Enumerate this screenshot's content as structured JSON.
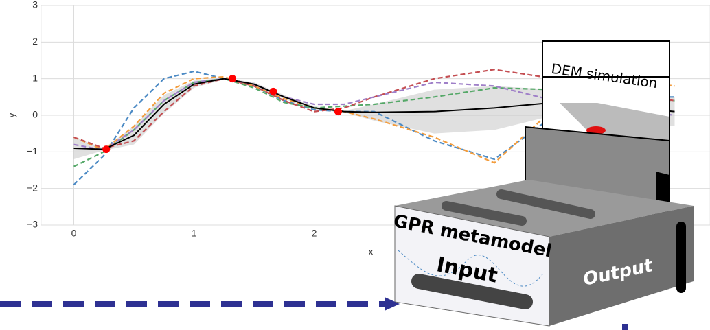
{
  "chart_data": {
    "type": "line",
    "x_label": "x",
    "y_label": "y",
    "x": [
      0,
      0.25,
      0.5,
      0.75,
      1.0,
      1.25,
      1.5,
      1.75,
      2.0,
      2.25,
      2.5,
      3.0,
      3.5,
      4.0,
      4.5,
      5.0
    ],
    "xlim": [
      -0.3,
      5.3
    ],
    "ylim": [
      -3,
      3
    ],
    "xticks": [
      0,
      1,
      2
    ],
    "yticks": [
      {
        "value": -3,
        "label": "−3"
      },
      {
        "value": -2,
        "label": "−2"
      },
      {
        "value": -1,
        "label": "−1"
      },
      0,
      1,
      2,
      3
    ],
    "grid": true,
    "mean": {
      "color": "#000000",
      "values": [
        -0.9,
        -0.93,
        -0.55,
        0.3,
        0.85,
        1.0,
        0.85,
        0.5,
        0.2,
        0.1,
        0.08,
        0.1,
        0.2,
        0.35,
        0.25,
        0.1
      ]
    },
    "band": {
      "color": "#bbbbbb",
      "upper": [
        -0.6,
        -0.9,
        -0.3,
        0.55,
        0.95,
        1.02,
        0.9,
        0.55,
        0.25,
        0.12,
        0.3,
        0.7,
        0.8,
        0.7,
        0.6,
        0.5
      ],
      "lower": [
        -1.2,
        -0.96,
        -0.8,
        0.05,
        0.75,
        0.98,
        0.8,
        0.45,
        0.15,
        0.08,
        -0.15,
        -0.5,
        -0.4,
        0.0,
        -0.1,
        -0.3
      ]
    },
    "series": [
      {
        "color": "#4c8ac4",
        "values": [
          -1.9,
          -1.1,
          0.2,
          1.0,
          1.2,
          1.0,
          0.8,
          0.4,
          0.15,
          0.1,
          0.1,
          -0.7,
          -1.2,
          0.0,
          0.5,
          0.5
        ]
      },
      {
        "color": "#f39c3c",
        "values": [
          -0.6,
          -0.95,
          -0.3,
          0.6,
          1.0,
          1.05,
          0.8,
          0.45,
          0.2,
          0.1,
          -0.1,
          -0.6,
          -1.3,
          0.2,
          1.0,
          0.8
        ]
      },
      {
        "color": "#55a868",
        "values": [
          -1.4,
          -1.0,
          -0.4,
          0.4,
          0.9,
          1.0,
          0.75,
          0.35,
          0.2,
          0.25,
          0.3,
          0.5,
          0.75,
          0.7,
          0.5,
          0.4
        ]
      },
      {
        "color": "#c44e52",
        "values": [
          -0.6,
          -0.9,
          -0.7,
          0.1,
          0.8,
          1.0,
          0.8,
          0.4,
          0.1,
          0.2,
          0.5,
          1.0,
          1.25,
          1.0,
          0.6,
          0.4
        ]
      },
      {
        "color": "#9f7fc8",
        "values": [
          -0.8,
          -0.95,
          -0.4,
          0.4,
          0.9,
          1.0,
          0.85,
          0.5,
          0.3,
          0.3,
          0.5,
          0.9,
          0.8,
          0.4,
          0.2,
          0.0
        ]
      }
    ],
    "points": {
      "color": "#ff0000",
      "x": [
        0.27,
        1.32,
        1.66,
        2.2
      ],
      "y": [
        -0.93,
        1.0,
        0.65,
        0.1
      ]
    }
  },
  "diagram": {
    "simulation_label": "DEM simulation",
    "metamodel_label": "GPR metamodel",
    "input_label": "Input",
    "output_label": "Output"
  }
}
